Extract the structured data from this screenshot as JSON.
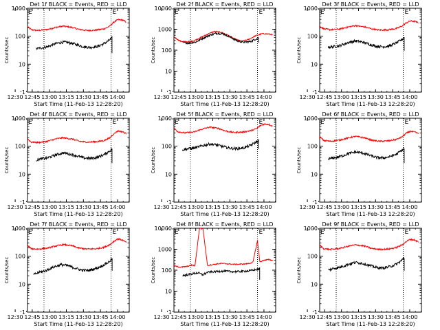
{
  "chart_data": [
    {
      "type": "line",
      "title": "Det 1f BLACK = Events, RED = LLD",
      "xlabel": "Start Time (11-Feb-13 12:28:20)",
      "ylabel": "Counts/sec",
      "xticks": [
        "12:30",
        "12:45",
        "13:00",
        "13:15",
        "13:30",
        "13:45",
        "14:00"
      ],
      "yticks": [
        "1",
        "10",
        "100",
        "1000"
      ],
      "ylim": [
        1,
        1000
      ],
      "yscale": "log",
      "xlim_minutes": [
        12.5,
        102
      ],
      "markers": [
        {
          "x": 27,
          "style": "dotted"
        },
        {
          "x": 86,
          "style": "dotted"
        }
      ],
      "e_label": "E",
      "series": [
        {
          "color": "#ff0000",
          "t": [
            12.5,
            16,
            22,
            30,
            38,
            44,
            52,
            58,
            65,
            73,
            80,
            85,
            88,
            92,
            96,
            99.5
          ],
          "values": [
            220,
            170,
            160,
            175,
            210,
            230,
            205,
            175,
            160,
            165,
            185,
            230,
            310,
            390,
            380,
            320
          ]
        },
        {
          "color": "#000000",
          "t": [
            20,
            24,
            30,
            38,
            44,
            50,
            56,
            62,
            68,
            74,
            80,
            84,
            87
          ],
          "values": [
            35,
            38,
            42,
            55,
            62,
            58,
            50,
            42,
            40,
            43,
            55,
            70,
            88
          ],
          "drop": 25
        }
      ]
    },
    {
      "type": "line",
      "title": "Det 2f BLACK = Events, RED = LLD",
      "xlabel": "Start Time (11-Feb-13 12:28:20)",
      "ylabel": "Counts/sec",
      "xticks": [
        "12:30",
        "12:45",
        "13:00",
        "13:15",
        "13:30",
        "13:45",
        "14:00"
      ],
      "yticks": [
        "1",
        "10",
        "100",
        "1000",
        "10000"
      ],
      "ylim": [
        1,
        10000
      ],
      "yscale": "log",
      "xlim_minutes": [
        12.5,
        102
      ],
      "markers": [
        {
          "x": 27,
          "style": "dotted"
        },
        {
          "x": 86,
          "style": "dotted"
        }
      ],
      "e_label": "E",
      "series": [
        {
          "color": "#ff0000",
          "t": [
            12.5,
            18,
            24,
            30,
            36,
            42,
            48,
            54,
            60,
            66,
            72,
            78,
            84,
            90,
            96,
            99.5
          ],
          "values": [
            420,
            270,
            250,
            280,
            400,
            580,
            780,
            720,
            520,
            340,
            270,
            320,
            480,
            610,
            590,
            540
          ]
        },
        {
          "color": "#000000",
          "t": [
            20,
            26,
            32,
            38,
            44,
            50,
            56,
            62,
            68,
            74,
            80,
            84,
            87
          ],
          "values": [
            230,
            220,
            250,
            380,
            520,
            650,
            600,
            420,
            280,
            240,
            260,
            330,
            400
          ],
          "drop": 230
        }
      ]
    },
    {
      "type": "line",
      "title": "Det 3f BLACK = Events, RED = LLD",
      "xlabel": "Start Time (11-Feb-13 12:28:20)",
      "ylabel": "Counts/sec",
      "xticks": [
        "12:30",
        "12:45",
        "13:00",
        "13:15",
        "13:30",
        "13:45",
        "14:00"
      ],
      "yticks": [
        "1",
        "10",
        "100",
        "1000"
      ],
      "ylim": [
        1,
        1000
      ],
      "yscale": "log",
      "xlim_minutes": [
        12.5,
        102
      ],
      "markers": [
        {
          "x": 27,
          "style": "dotted"
        },
        {
          "x": 86,
          "style": "dotted"
        }
      ],
      "e_label": "E",
      "series": [
        {
          "color": "#ff0000",
          "t": [
            12.5,
            16,
            22,
            30,
            38,
            44,
            52,
            58,
            65,
            73,
            80,
            85,
            88,
            92,
            96,
            99.5
          ],
          "values": [
            230,
            185,
            170,
            180,
            215,
            240,
            215,
            185,
            165,
            170,
            190,
            230,
            290,
            350,
            340,
            300
          ]
        },
        {
          "color": "#000000",
          "t": [
            20,
            24,
            30,
            38,
            44,
            50,
            56,
            62,
            68,
            74,
            80,
            84,
            87
          ],
          "values": [
            40,
            42,
            46,
            60,
            68,
            62,
            52,
            44,
            42,
            45,
            58,
            72,
            90
          ],
          "drop": 30
        }
      ]
    },
    {
      "type": "line",
      "title": "Det 4f BLACK = Events, RED = LLD",
      "xlabel": "Start Time (11-Feb-13 12:28:20)",
      "ylabel": "Counts/sec",
      "xticks": [
        "12:30",
        "12:45",
        "13:00",
        "13:15",
        "13:30",
        "13:45",
        "14:00"
      ],
      "yticks": [
        "1",
        "10",
        "100",
        "1000"
      ],
      "ylim": [
        1,
        1000
      ],
      "yscale": "log",
      "xlim_minutes": [
        12.5,
        102
      ],
      "markers": [
        {
          "x": 27,
          "style": "dotted"
        },
        {
          "x": 86,
          "style": "dotted"
        }
      ],
      "e_label": "E",
      "series": [
        {
          "color": "#ff0000",
          "t": [
            12.5,
            16,
            22,
            30,
            38,
            44,
            52,
            58,
            65,
            73,
            80,
            85,
            88,
            92,
            96,
            99.5
          ],
          "values": [
            180,
            140,
            135,
            150,
            185,
            200,
            180,
            150,
            140,
            145,
            160,
            200,
            270,
            350,
            330,
            280
          ]
        },
        {
          "color": "#000000",
          "t": [
            20,
            24,
            30,
            38,
            44,
            50,
            56,
            62,
            68,
            74,
            80,
            84,
            87
          ],
          "values": [
            32,
            35,
            38,
            50,
            58,
            52,
            45,
            38,
            37,
            40,
            50,
            65,
            80
          ],
          "drop": 25
        }
      ]
    },
    {
      "type": "line",
      "title": "Det 5f BLACK = Events, RED = LLD",
      "xlabel": "Start Time (11-Feb-13 12:28:20)",
      "ylabel": "Counts/sec",
      "xticks": [
        "12:30",
        "12:45",
        "13:00",
        "13:15",
        "13:30",
        "13:45",
        "14:00"
      ],
      "yticks": [
        "1",
        "10",
        "100",
        "1000"
      ],
      "ylim": [
        1,
        1000
      ],
      "yscale": "log",
      "xlim_minutes": [
        12.5,
        102
      ],
      "markers": [
        {
          "x": 27,
          "style": "dotted"
        },
        {
          "x": 86,
          "style": "dotted"
        }
      ],
      "e_label": "E",
      "series": [
        {
          "color": "#ff0000",
          "t": [
            12.5,
            16,
            22,
            30,
            38,
            44,
            52,
            58,
            65,
            73,
            80,
            85,
            88,
            92,
            96,
            99.5
          ],
          "values": [
            440,
            330,
            300,
            320,
            420,
            480,
            430,
            350,
            310,
            320,
            360,
            420,
            530,
            620,
            600,
            520
          ]
        },
        {
          "color": "#000000",
          "t": [
            20,
            24,
            30,
            38,
            44,
            50,
            56,
            62,
            68,
            74,
            80,
            84,
            87
          ],
          "values": [
            75,
            80,
            85,
            105,
            120,
            112,
            96,
            85,
            82,
            88,
            108,
            135,
            160
          ],
          "drop": 80
        }
      ]
    },
    {
      "type": "line",
      "title": "Det 6f BLACK = Events, RED = LLD",
      "xlabel": "Start Time (11-Feb-13 12:28:20)",
      "ylabel": "Counts/sec",
      "xticks": [
        "12:30",
        "12:45",
        "13:00",
        "13:15",
        "13:30",
        "13:45",
        "14:00"
      ],
      "yticks": [
        "1",
        "10",
        "100",
        "1000"
      ],
      "ylim": [
        1,
        1000
      ],
      "yscale": "log",
      "xlim_minutes": [
        12.5,
        102
      ],
      "markers": [
        {
          "x": 27,
          "style": "dotted"
        },
        {
          "x": 86,
          "style": "dotted"
        }
      ],
      "e_label": "E",
      "series": [
        {
          "color": "#ff0000",
          "t": [
            12.5,
            16,
            22,
            30,
            38,
            44,
            52,
            58,
            65,
            73,
            80,
            85,
            88,
            92,
            96,
            99.5
          ],
          "values": [
            220,
            160,
            150,
            165,
            200,
            225,
            200,
            165,
            150,
            155,
            175,
            215,
            280,
            340,
            320,
            280
          ]
        },
        {
          "color": "#000000",
          "t": [
            20,
            24,
            30,
            38,
            44,
            50,
            56,
            62,
            68,
            74,
            80,
            84,
            87
          ],
          "values": [
            35,
            38,
            42,
            55,
            62,
            58,
            48,
            40,
            38,
            42,
            52,
            68,
            82
          ],
          "drop": 25
        }
      ]
    },
    {
      "type": "line",
      "title": "Det 7f BLACK = Events, RED = LLD",
      "xlabel": "Start Time (11-Feb-13 12:28:20)",
      "ylabel": "Counts/sec",
      "xticks": [
        "12:30",
        "12:45",
        "13:00",
        "13:15",
        "13:30",
        "13:45",
        "14:00"
      ],
      "yticks": [
        "1",
        "10",
        "100",
        "1000"
      ],
      "ylim": [
        1,
        1000
      ],
      "yscale": "log",
      "xlim_minutes": [
        12.5,
        102
      ],
      "markers": [
        {
          "x": 27,
          "style": "dotted"
        },
        {
          "x": 86,
          "style": "dotted"
        }
      ],
      "e_label": "E",
      "series": [
        {
          "color": "#ff0000",
          "t": [
            12.5,
            16,
            22,
            30,
            38,
            44,
            52,
            58,
            65,
            73,
            80,
            85,
            88,
            92,
            96,
            99.5
          ],
          "values": [
            240,
            185,
            180,
            195,
            235,
            260,
            235,
            195,
            180,
            185,
            210,
            260,
            330,
            420,
            380,
            310
          ]
        },
        {
          "color": "#000000",
          "t": [
            18,
            22,
            28,
            36,
            42,
            48,
            54,
            60,
            66,
            72,
            78,
            84,
            87
          ],
          "values": [
            22,
            26,
            30,
            42,
            50,
            46,
            38,
            32,
            31,
            36,
            45,
            62,
            82
          ],
          "drop": 30
        }
      ]
    },
    {
      "type": "line",
      "title": "Det 8f BLACK = Events, RED = LLD",
      "xlabel": "Start Time (11-Feb-13 12:28:20)",
      "ylabel": "Counts/sec",
      "xticks": [
        "12:30",
        "12:45",
        "13:00",
        "13:15",
        "13:30",
        "13:45",
        "14:00"
      ],
      "yticks": [
        "1",
        "10",
        "100",
        "1000",
        "10000"
      ],
      "ylim": [
        1,
        10000
      ],
      "yscale": "log",
      "xlim_minutes": [
        12.5,
        102
      ],
      "markers": [
        {
          "x": 27,
          "style": "dotted"
        },
        {
          "x": 86,
          "style": "dotted"
        }
      ],
      "e_label": "E",
      "series": [
        {
          "color": "#ff0000",
          "t": [
            12.5,
            18,
            24,
            28,
            31,
            35,
            38,
            42,
            48,
            54,
            60,
            66,
            72,
            78,
            82,
            86,
            88,
            92,
            96,
            99.5
          ],
          "values": [
            160,
            140,
            150,
            175,
            165,
            10000,
            10000,
            170,
            190,
            210,
            200,
            190,
            195,
            205,
            240,
            2600,
            250,
            300,
            320,
            290
          ],
          "spikes": [
            [
              30.5,
              34.5
            ],
            [
              84.5,
              84.9
            ]
          ]
        },
        {
          "color": "#000000",
          "t": [
            20,
            24,
            30,
            34,
            38,
            42,
            48,
            54,
            60,
            66,
            72,
            78,
            82,
            86,
            88
          ],
          "values": [
            55,
            60,
            70,
            75,
            60,
            80,
            85,
            90,
            88,
            85,
            88,
            92,
            100,
            110,
            120
          ],
          "drop": 35
        }
      ]
    },
    {
      "type": "line",
      "title": "Det 9f BLACK = Events, RED = LLD",
      "xlabel": "Start Time (11-Feb-13 12:28:20)",
      "ylabel": "Counts/sec",
      "xticks": [
        "12:30",
        "12:45",
        "13:00",
        "13:15",
        "13:30",
        "13:45",
        "14:00"
      ],
      "yticks": [
        "1",
        "10",
        "100",
        "1000"
      ],
      "ylim": [
        1,
        1000
      ],
      "yscale": "log",
      "xlim_minutes": [
        12.5,
        102
      ],
      "markers": [
        {
          "x": 27,
          "style": "dotted"
        },
        {
          "x": 86,
          "style": "dotted"
        }
      ],
      "e_label": "E",
      "series": [
        {
          "color": "#ff0000",
          "t": [
            12.5,
            16,
            22,
            30,
            38,
            44,
            52,
            58,
            65,
            73,
            80,
            85,
            88,
            92,
            96,
            99.5
          ],
          "values": [
            250,
            185,
            175,
            190,
            230,
            255,
            230,
            190,
            175,
            180,
            205,
            255,
            320,
            400,
            380,
            320
          ]
        },
        {
          "color": "#000000",
          "t": [
            20,
            24,
            30,
            38,
            44,
            50,
            56,
            62,
            68,
            74,
            80,
            84,
            87
          ],
          "values": [
            32,
            36,
            40,
            52,
            60,
            56,
            47,
            40,
            38,
            42,
            52,
            68,
            88
          ],
          "drop": 30
        }
      ]
    }
  ]
}
